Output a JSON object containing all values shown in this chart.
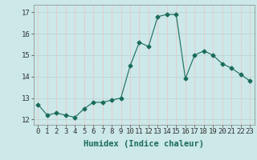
{
  "x": [
    0,
    1,
    2,
    3,
    4,
    5,
    6,
    7,
    8,
    9,
    10,
    11,
    12,
    13,
    14,
    15,
    16,
    17,
    18,
    19,
    20,
    21,
    22,
    23
  ],
  "y": [
    12.7,
    12.2,
    12.3,
    12.2,
    12.1,
    12.5,
    12.8,
    12.8,
    12.9,
    13.0,
    14.5,
    15.6,
    15.4,
    16.8,
    16.9,
    16.9,
    13.9,
    15.0,
    15.2,
    15.0,
    14.6,
    14.4,
    14.1,
    13.8
  ],
  "line_color": "#1a6b5a",
  "marker": "D",
  "marker_size": 2.5,
  "bg_color": "#cce8e8",
  "grid_color_h": "#b8d4d4",
  "grid_color_v": "#e8c8c8",
  "xlabel": "Humidex (Indice chaleur)",
  "ylim": [
    11.75,
    17.35
  ],
  "xlim": [
    -0.5,
    23.5
  ],
  "yticks": [
    12,
    13,
    14,
    15,
    16,
    17
  ],
  "xticks": [
    0,
    1,
    2,
    3,
    4,
    5,
    6,
    7,
    8,
    9,
    10,
    11,
    12,
    13,
    14,
    15,
    16,
    17,
    18,
    19,
    20,
    21,
    22,
    23
  ],
  "xlabel_fontsize": 7.5,
  "tick_fontsize": 6.5
}
